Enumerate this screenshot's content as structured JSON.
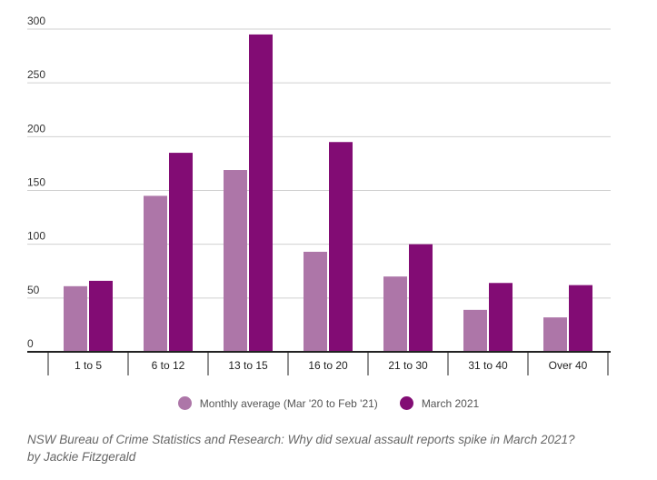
{
  "chart_data": {
    "type": "bar",
    "categories": [
      "1 to 5",
      "6 to 12",
      "13 to 15",
      "16 to 20",
      "21 to 30",
      "31 to 40",
      "Over 40"
    ],
    "series": [
      {
        "name": "Monthly average (Mar '20 to Feb '21)",
        "color": "#ad76a8",
        "values": [
          61,
          145,
          169,
          93,
          70,
          39,
          32
        ]
      },
      {
        "name": "March 2021",
        "color": "#820c74",
        "values": [
          66,
          185,
          295,
          195,
          100,
          64,
          62
        ]
      }
    ],
    "ylim": [
      0,
      300
    ],
    "yticks": [
      "0",
      "50",
      "100",
      "150",
      "200",
      "250",
      "300"
    ],
    "grid": true,
    "legend_position": "bottom"
  },
  "source": {
    "line1": "NSW Bureau of Crime Statistics and Research: Why did sexual assault reports spike in March 2021?",
    "line2": "by Jackie Fitzgerald"
  }
}
